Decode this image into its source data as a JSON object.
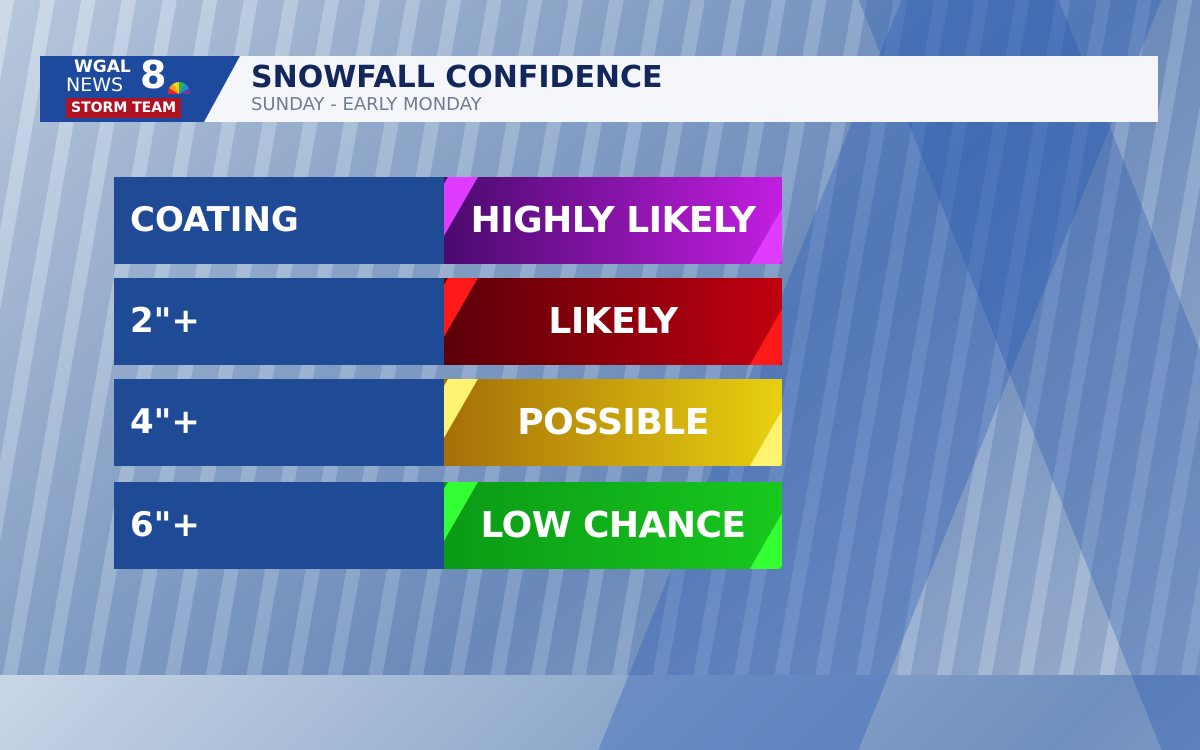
{
  "header": {
    "logo": {
      "line1": "WGAL",
      "line2": "NEWS",
      "number": "8",
      "badge": "STORM TEAM"
    },
    "title": "SNOWFALL CONFIDENCE",
    "subtitle": "SUNDAY - EARLY MONDAY"
  },
  "rows": [
    {
      "amount": "COATING",
      "confidence": "HIGHLY LIKELY",
      "color_dark": "#4a0a6e",
      "color_light": "#c21ee0",
      "accent": "#e03cff"
    },
    {
      "amount": "2\"+",
      "confidence": "LIKELY",
      "color_dark": "#5a0008",
      "color_light": "#c00010",
      "accent": "#ff1a1a"
    },
    {
      "amount": "4\"+",
      "confidence": "POSSIBLE",
      "color_dark": "#a56f08",
      "color_light": "#e8d010",
      "accent": "#fff470"
    },
    {
      "amount": "6\"+",
      "confidence": "LOW CHANCE",
      "color_dark": "#0a9a16",
      "color_light": "#18c81e",
      "accent": "#33ff33"
    }
  ]
}
